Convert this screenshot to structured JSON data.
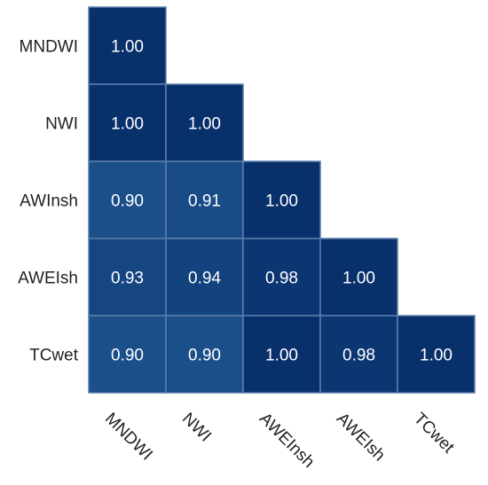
{
  "chart_data": {
    "type": "heatmap",
    "title": "",
    "xlabel": "",
    "ylabel": "",
    "rows": [
      "MNDWI",
      "NWI",
      "AWInsh",
      "AWEIsh",
      "TCwet"
    ],
    "columns": [
      "MNDWI",
      "NWI",
      "AWEInsh",
      "AWEIsh",
      "TCwet"
    ],
    "values": [
      [
        1.0,
        null,
        null,
        null,
        null
      ],
      [
        1.0,
        1.0,
        null,
        null,
        null
      ],
      [
        0.9,
        0.91,
        1.0,
        null,
        null
      ],
      [
        0.93,
        0.94,
        0.98,
        1.0,
        null
      ],
      [
        0.9,
        0.9,
        1.0,
        0.98,
        1.0
      ]
    ],
    "labels": [
      [
        "1.00",
        "",
        "",
        "",
        ""
      ],
      [
        "1.00",
        "1.00",
        "",
        "",
        ""
      ],
      [
        "0.90",
        "0.91",
        "1.00",
        "",
        ""
      ],
      [
        "0.93",
        "0.94",
        "0.98",
        "1.00",
        ""
      ],
      [
        "0.90",
        "0.90",
        "1.00",
        "0.98",
        "1.00"
      ]
    ],
    "lower_triangle_only": true,
    "grid": false,
    "legend": "none",
    "colors": {
      "low": "#1b4f8a",
      "high": "#08306b",
      "cell_border": "#5a7fad",
      "label_text": "#ffffff"
    },
    "value_range": [
      0.9,
      1.0
    ]
  }
}
